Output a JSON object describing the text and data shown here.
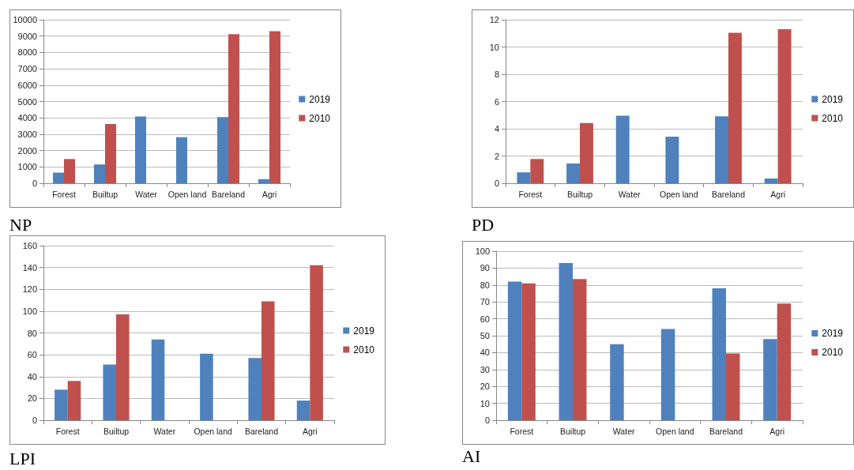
{
  "chart_data": [
    {
      "type": "bar",
      "title": "NP",
      "categories": [
        "Forest",
        "Builtup",
        "Water",
        "Open land",
        "Bareland",
        "Agri"
      ],
      "series": [
        {
          "name": "2019",
          "color": "#4f81bd",
          "values": [
            650,
            1150,
            4080,
            2820,
            4050,
            250
          ]
        },
        {
          "name": "2010",
          "color": "#c0504d",
          "values": [
            1480,
            3620,
            null,
            null,
            9120,
            9300
          ]
        }
      ],
      "ylim": [
        0,
        10000
      ],
      "yticks": [
        0,
        1000,
        2000,
        3000,
        4000,
        5000,
        6000,
        7000,
        8000,
        9000,
        10000
      ],
      "grid": "y",
      "legend": "right"
    },
    {
      "type": "bar",
      "title": "PD",
      "categories": [
        "Forest",
        "Builtup",
        "Water",
        "Open land",
        "Bareland",
        "Agri"
      ],
      "series": [
        {
          "name": "2019",
          "color": "#4f81bd",
          "values": [
            0.8,
            1.45,
            4.95,
            3.42,
            4.92,
            0.35
          ]
        },
        {
          "name": "2010",
          "color": "#c0504d",
          "values": [
            1.78,
            4.42,
            null,
            null,
            11.05,
            11.3
          ]
        }
      ],
      "ylim": [
        0,
        12
      ],
      "yticks": [
        0,
        2,
        4,
        6,
        8,
        10,
        12
      ],
      "grid": "y",
      "legend": "right"
    },
    {
      "type": "bar",
      "title": "LPI",
      "categories": [
        "Forest",
        "Builtup",
        "Water",
        "Open land",
        "Bareland",
        "Agri"
      ],
      "series": [
        {
          "name": "2019",
          "color": "#4f81bd",
          "values": [
            28,
            51,
            74,
            61,
            57,
            18
          ]
        },
        {
          "name": "2010",
          "color": "#c0504d",
          "values": [
            36,
            97,
            null,
            null,
            109,
            142
          ]
        }
      ],
      "ylim": [
        0,
        160
      ],
      "yticks": [
        0,
        20,
        40,
        60,
        80,
        100,
        120,
        140,
        160
      ],
      "grid": "y",
      "legend": "right"
    },
    {
      "type": "bar",
      "title": "AI",
      "categories": [
        "Forest",
        "Builtup",
        "Water",
        "Open land",
        "Bareland",
        "Agri"
      ],
      "series": [
        {
          "name": "2019",
          "color": "#4f81bd",
          "values": [
            82,
            93,
            45,
            54,
            78,
            48
          ]
        },
        {
          "name": "2010",
          "color": "#c0504d",
          "values": [
            81,
            83.5,
            null,
            null,
            39.5,
            69
          ]
        }
      ],
      "ylim": [
        0,
        100
      ],
      "yticks": [
        0,
        10,
        20,
        30,
        40,
        50,
        60,
        70,
        80,
        90,
        100
      ],
      "grid": "y",
      "legend": "right"
    }
  ]
}
